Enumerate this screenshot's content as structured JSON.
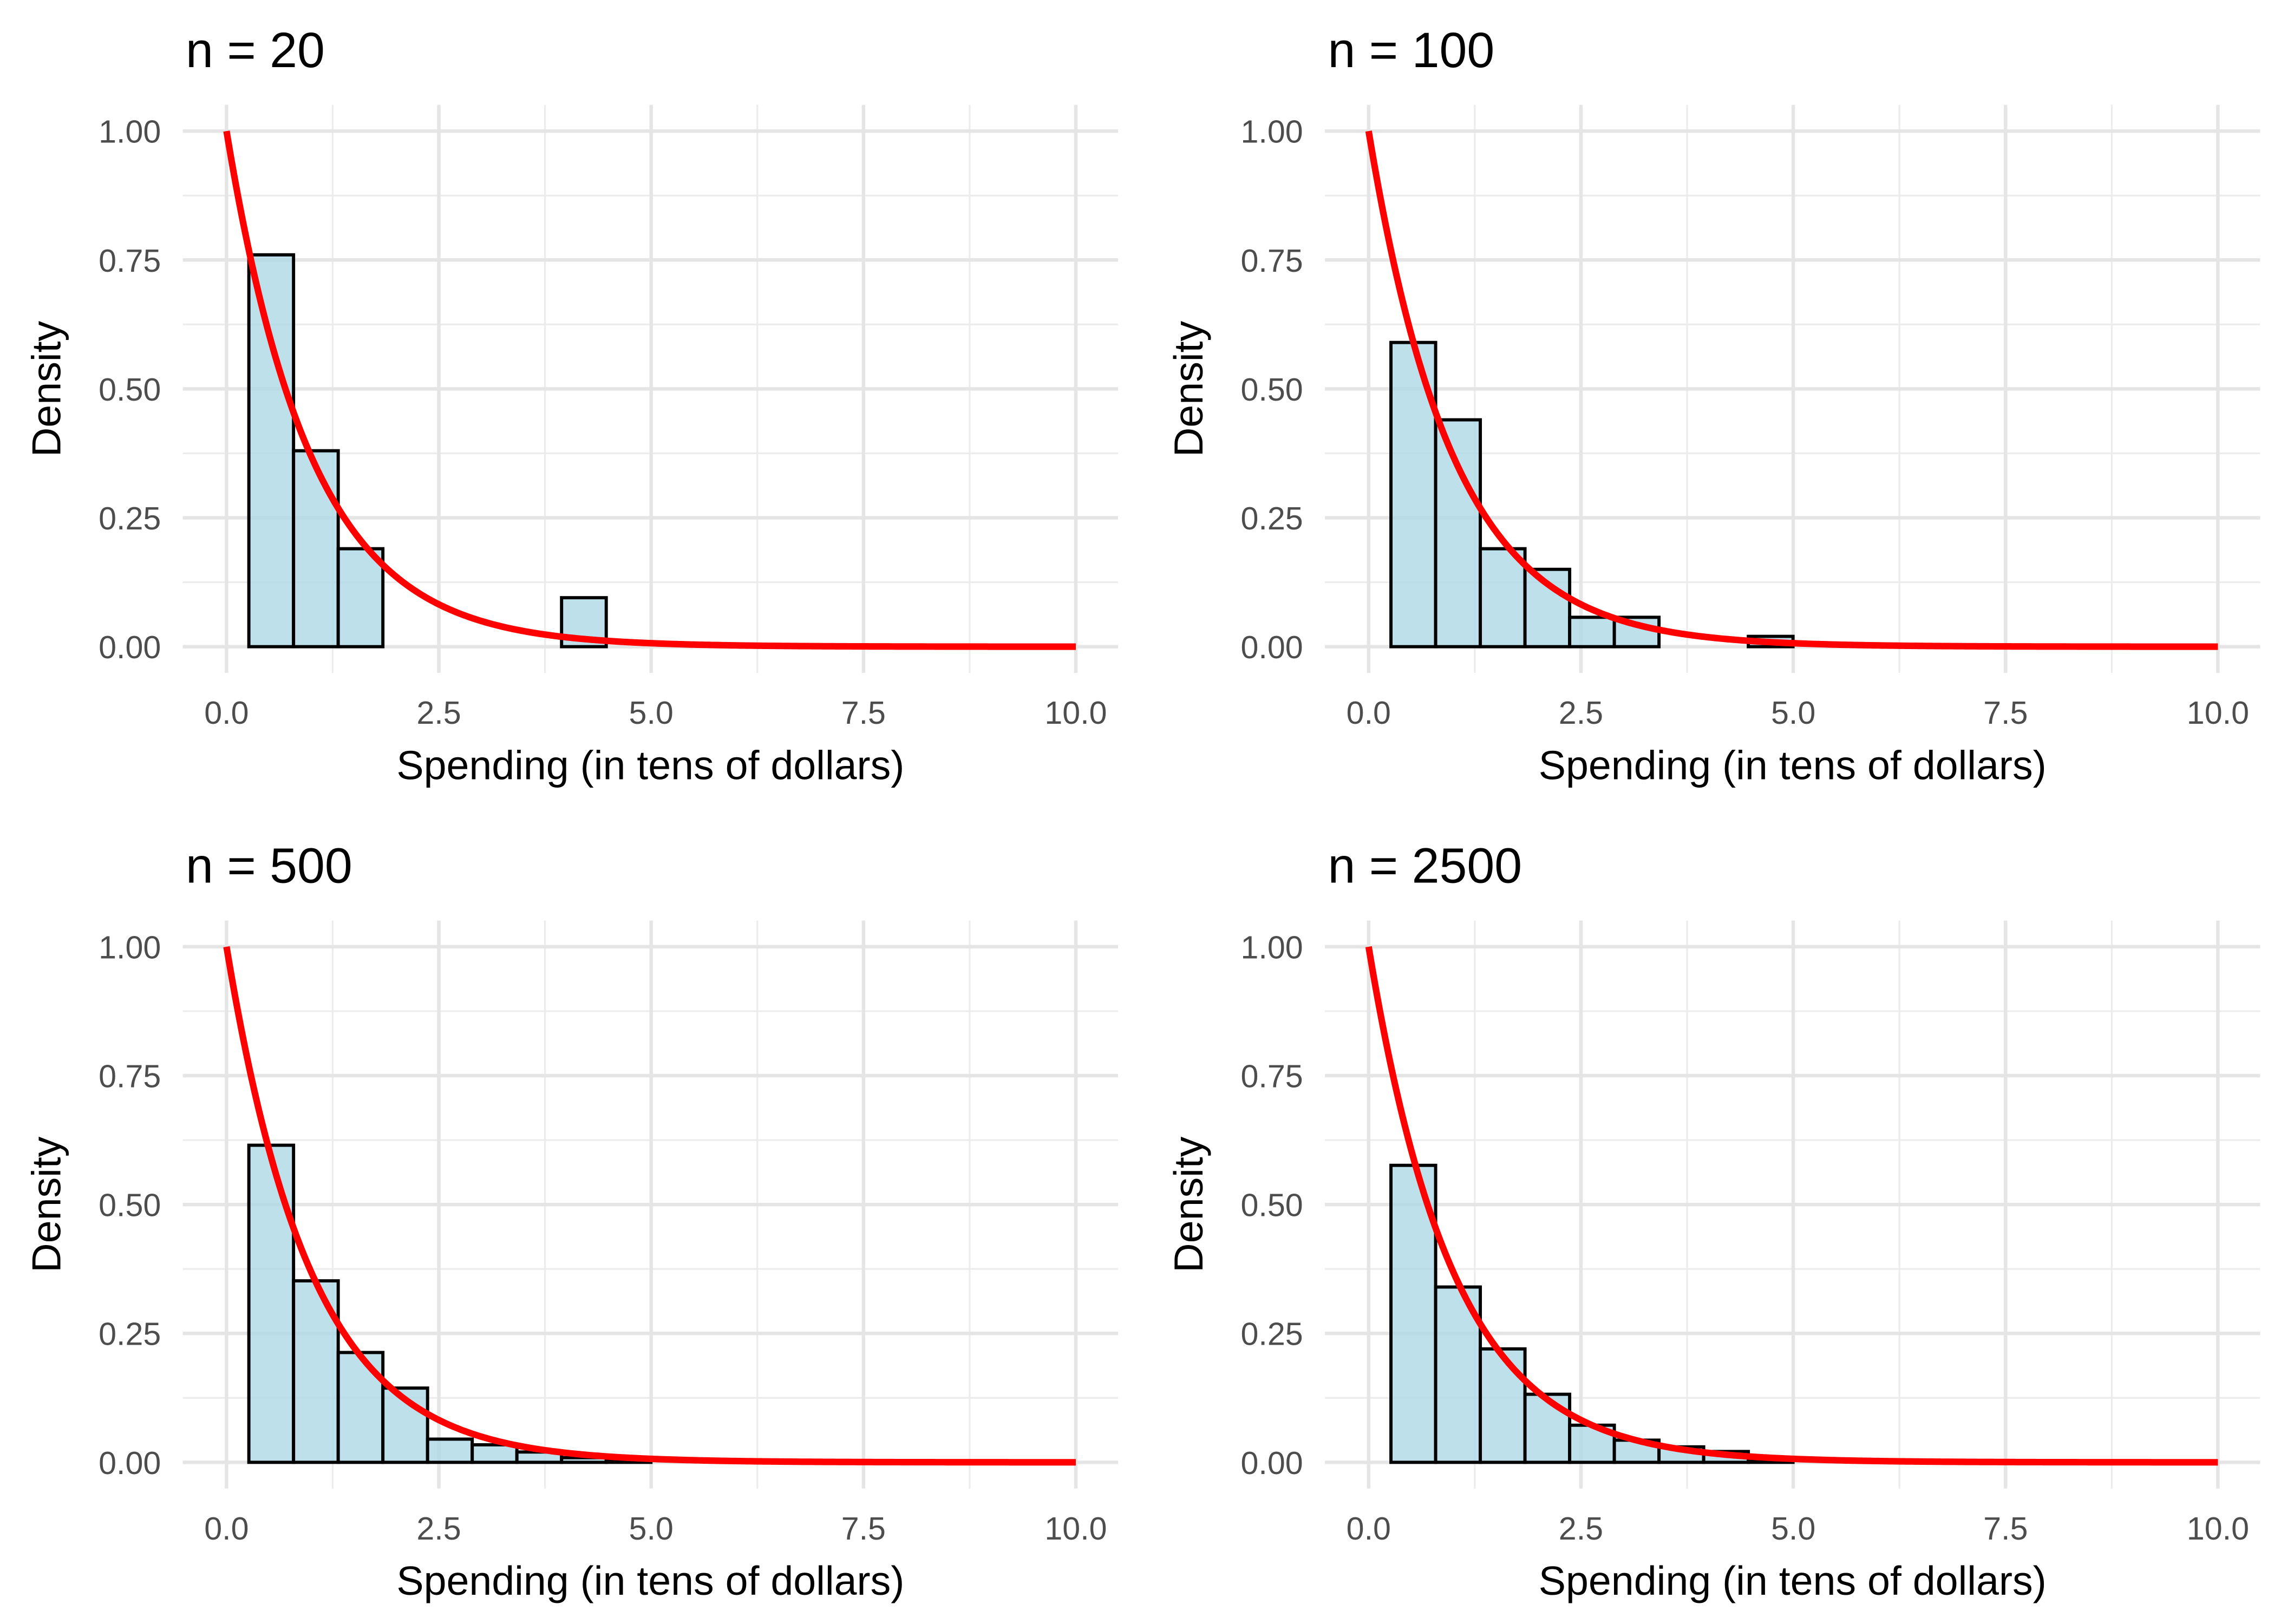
{
  "chart_data": [
    {
      "type": "bar",
      "title": "n = 20",
      "xlabel": "Spending (in tens of dollars)",
      "ylabel": "Density",
      "xlim": [
        0,
        10
      ],
      "ylim": [
        0,
        1
      ],
      "x_ticks": [
        "0.0",
        "2.5",
        "5.0",
        "7.5",
        "10.0"
      ],
      "y_ticks": [
        "0.00",
        "0.25",
        "0.50",
        "0.75",
        "1.00"
      ],
      "bin_start": 0.263,
      "bin_width": 0.526,
      "values": [
        0.76,
        0.38,
        0.19,
        0,
        0,
        0,
        0,
        0.095
      ],
      "curve": {
        "label": "exponential density, rate 1",
        "rate": 1,
        "color": "#ff0000"
      },
      "grid": true
    },
    {
      "type": "bar",
      "title": "n = 100",
      "xlabel": "Spending (in tens of dollars)",
      "ylabel": "Density",
      "xlim": [
        0,
        10
      ],
      "ylim": [
        0,
        1
      ],
      "x_ticks": [
        "0.0",
        "2.5",
        "5.0",
        "7.5",
        "10.0"
      ],
      "y_ticks": [
        "0.00",
        "0.25",
        "0.50",
        "0.75",
        "1.00"
      ],
      "bin_start": 0.263,
      "bin_width": 0.526,
      "values": [
        0.59,
        0.44,
        0.19,
        0.15,
        0.057,
        0.057,
        0,
        0,
        0.02
      ],
      "curve": {
        "label": "exponential density, rate 1",
        "rate": 1,
        "color": "#ff0000"
      },
      "grid": true
    },
    {
      "type": "bar",
      "title": "n = 500",
      "xlabel": "Spending (in tens of dollars)",
      "ylabel": "Density",
      "xlim": [
        0,
        10
      ],
      "ylim": [
        0,
        1
      ],
      "x_ticks": [
        "0.0",
        "2.5",
        "5.0",
        "7.5",
        "10.0"
      ],
      "y_ticks": [
        "0.00",
        "0.25",
        "0.50",
        "0.75",
        "1.00"
      ],
      "bin_start": 0.263,
      "bin_width": 0.526,
      "values": [
        0.615,
        0.352,
        0.213,
        0.144,
        0.045,
        0.034,
        0.02,
        0.009,
        0.004
      ],
      "curve": {
        "label": "exponential density, rate 1",
        "rate": 1,
        "color": "#ff0000"
      },
      "grid": true
    },
    {
      "type": "bar",
      "title": "n = 2500",
      "xlabel": "Spending (in tens of dollars)",
      "ylabel": "Density",
      "xlim": [
        0,
        10
      ],
      "ylim": [
        0,
        1
      ],
      "x_ticks": [
        "0.0",
        "2.5",
        "5.0",
        "7.5",
        "10.0"
      ],
      "y_ticks": [
        "0.00",
        "0.25",
        "0.50",
        "0.75",
        "1.00"
      ],
      "bin_start": 0.263,
      "bin_width": 0.526,
      "values": [
        0.576,
        0.34,
        0.22,
        0.132,
        0.072,
        0.043,
        0.03,
        0.021,
        0.003
      ],
      "curve": {
        "label": "exponential density, rate 1",
        "rate": 1,
        "color": "#ff0000"
      },
      "grid": true
    }
  ]
}
